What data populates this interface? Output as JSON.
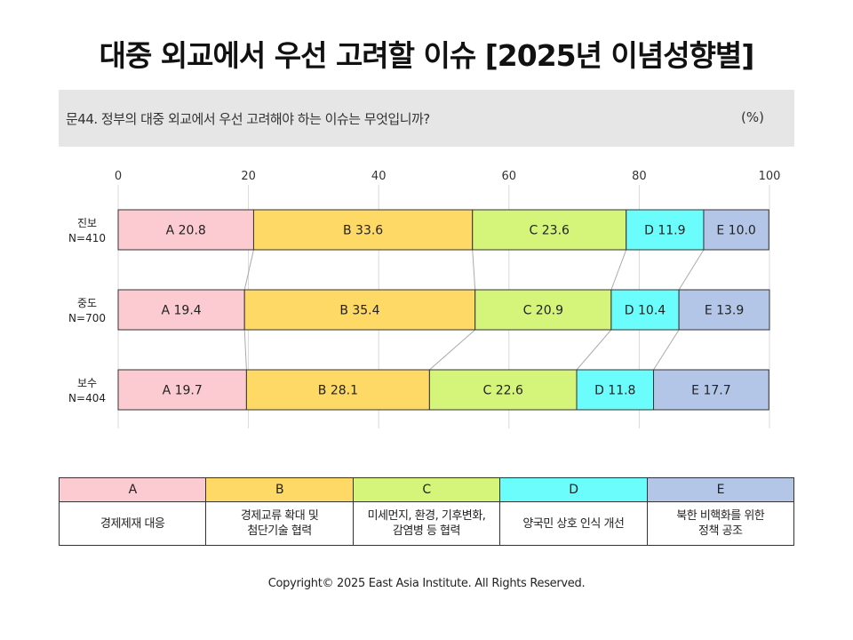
{
  "title": "대중 외교에서 우선 고려할 이슈 [2025년 이념성향별]",
  "question": "문44. 정부의 대중 외교에서 우선 고려해야 하는 이슈는 무엇입니까?",
  "unit": "(%)",
  "copyright": "Copyright© 2025 East Asia Institute. All Rights Reserved.",
  "colors": {
    "A": "#fccbd1",
    "B": "#ffd966",
    "C": "#d4f57a",
    "D": "#6bfcfc",
    "E": "#b4c6e7",
    "connector": "#aaaaaa",
    "grid": "#d9d9d9",
    "border": "#333333"
  },
  "chart_data": {
    "type": "bar",
    "stacked": true,
    "orientation": "horizontal",
    "categories": [
      {
        "name": "진보",
        "n": "N=410"
      },
      {
        "name": "중도",
        "n": "N=700"
      },
      {
        "name": "보수",
        "n": "N=404"
      }
    ],
    "series": [
      {
        "name": "A",
        "values": [
          20.8,
          19.4,
          19.7
        ]
      },
      {
        "name": "B",
        "values": [
          33.6,
          35.4,
          28.1
        ]
      },
      {
        "name": "C",
        "values": [
          23.6,
          20.9,
          22.6
        ]
      },
      {
        "name": "D",
        "values": [
          11.9,
          10.4,
          11.8
        ]
      },
      {
        "name": "E",
        "values": [
          10.0,
          13.9,
          17.7
        ]
      }
    ],
    "xlim": [
      0,
      100
    ],
    "xticks": [
      0,
      20,
      40,
      60,
      80,
      100
    ],
    "grid": true,
    "connector_lines": true
  },
  "legend_table": {
    "headers": [
      "A",
      "B",
      "C",
      "D",
      "E"
    ],
    "descriptions": [
      "경제제재 대응",
      "경제교류 확대 및\n첨단기술 협력",
      "미세먼지, 환경, 기후변화,\n감염병 등 협력",
      "양국민 상호 인식 개선",
      "북한 비핵화를 위한\n정책 공조"
    ]
  }
}
